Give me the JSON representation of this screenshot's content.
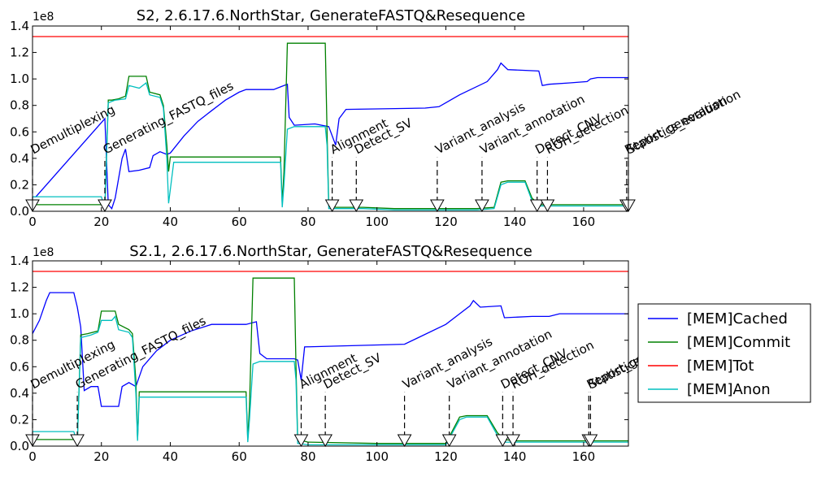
{
  "chart_data": [
    {
      "type": "line",
      "title": "S2, 2.6.17.6.NorthStar, GenerateFASTQ&Resequence",
      "offset_label": "1e8",
      "xlim": [
        0,
        173
      ],
      "ylim": [
        0,
        1.4
      ],
      "xticks": [
        0,
        20,
        40,
        60,
        80,
        100,
        120,
        140,
        160
      ],
      "yticks": [
        "0.0",
        "0.2",
        "0.4",
        "0.6",
        "0.8",
        "1.0",
        "1.2",
        "1.4"
      ],
      "series": [
        {
          "name": "[MEM]Cached",
          "color": "#0000ff",
          "points": [
            [
              0,
              0.11
            ],
            [
              1,
              0.11
            ],
            [
              21,
              0.7
            ],
            [
              22,
              0.05
            ],
            [
              23,
              0.02
            ],
            [
              24,
              0.1
            ],
            [
              26,
              0.4
            ],
            [
              27,
              0.47
            ],
            [
              28,
              0.3
            ],
            [
              31,
              0.31
            ],
            [
              34,
              0.33
            ],
            [
              35,
              0.42
            ],
            [
              37,
              0.45
            ],
            [
              39,
              0.43
            ],
            [
              40,
              0.44
            ],
            [
              44,
              0.57
            ],
            [
              48,
              0.68
            ],
            [
              52,
              0.76
            ],
            [
              56,
              0.84
            ],
            [
              60,
              0.9
            ],
            [
              62,
              0.92
            ],
            [
              70,
              0.92
            ],
            [
              72,
              0.94
            ],
            [
              74,
              0.96
            ],
            [
              74.5,
              0.71
            ],
            [
              76,
              0.65
            ],
            [
              82,
              0.66
            ],
            [
              86,
              0.64
            ],
            [
              88,
              0.5
            ],
            [
              89,
              0.7
            ],
            [
              91,
              0.77
            ],
            [
              114,
              0.78
            ],
            [
              118,
              0.79
            ],
            [
              124,
              0.88
            ],
            [
              132,
              0.98
            ],
            [
              135,
              1.07
            ],
            [
              136,
              1.12
            ],
            [
              138,
              1.07
            ],
            [
              147,
              1.06
            ],
            [
              148,
              0.95
            ],
            [
              150,
              0.96
            ],
            [
              156,
              0.97
            ],
            [
              161,
              0.98
            ],
            [
              162,
              1.0
            ],
            [
              164,
              1.01
            ],
            [
              173,
              1.01
            ]
          ]
        },
        {
          "name": "[MEM]Commit",
          "color": "#008000",
          "points": [
            [
              0,
              0.05
            ],
            [
              20,
              0.05
            ],
            [
              21,
              0.02
            ],
            [
              22,
              0.84
            ],
            [
              23,
              0.84
            ],
            [
              25,
              0.85
            ],
            [
              27,
              0.87
            ],
            [
              28,
              1.02
            ],
            [
              33,
              1.02
            ],
            [
              34,
              0.9
            ],
            [
              37,
              0.88
            ],
            [
              38,
              0.8
            ],
            [
              39,
              0.5
            ],
            [
              39.5,
              0.3
            ],
            [
              40,
              0.41
            ],
            [
              72,
              0.41
            ],
            [
              72.5,
              0.06
            ],
            [
              73,
              0.3
            ],
            [
              74,
              1.27
            ],
            [
              85,
              1.27
            ],
            [
              85.5,
              0.6
            ],
            [
              86,
              0.05
            ],
            [
              88,
              0.03
            ],
            [
              96,
              0.03
            ],
            [
              105,
              0.02
            ],
            [
              129,
              0.02
            ],
            [
              134,
              0.03
            ],
            [
              136,
              0.22
            ],
            [
              138,
              0.23
            ],
            [
              143,
              0.23
            ],
            [
              145,
              0.1
            ],
            [
              147,
              0.05
            ],
            [
              150,
              0.05
            ],
            [
              173,
              0.05
            ]
          ]
        },
        {
          "name": "[MEM]Tot",
          "color": "#ff0000",
          "points": [
            [
              0,
              1.32
            ],
            [
              173,
              1.32
            ]
          ]
        },
        {
          "name": "[MEM]Anon",
          "color": "#00bfbf",
          "points": [
            [
              0,
              0.11
            ],
            [
              20,
              0.11
            ],
            [
              21,
              0.02
            ],
            [
              22,
              0.82
            ],
            [
              24,
              0.84
            ],
            [
              27,
              0.85
            ],
            [
              28,
              0.95
            ],
            [
              31,
              0.93
            ],
            [
              33,
              0.97
            ],
            [
              34,
              0.88
            ],
            [
              37,
              0.86
            ],
            [
              38,
              0.78
            ],
            [
              39,
              0.4
            ],
            [
              39.5,
              0.06
            ],
            [
              41,
              0.37
            ],
            [
              72,
              0.37
            ],
            [
              72.5,
              0.03
            ],
            [
              73,
              0.2
            ],
            [
              74,
              0.62
            ],
            [
              76,
              0.64
            ],
            [
              85,
              0.64
            ],
            [
              85.5,
              0.5
            ],
            [
              86,
              0.02
            ],
            [
              88,
              0.02
            ],
            [
              96,
              0.02
            ],
            [
              105,
              0.01
            ],
            [
              129,
              0.01
            ],
            [
              134,
              0.02
            ],
            [
              136,
              0.2
            ],
            [
              138,
              0.22
            ],
            [
              143,
              0.22
            ],
            [
              145,
              0.08
            ],
            [
              147,
              0.04
            ],
            [
              150,
              0.04
            ],
            [
              173,
              0.04
            ]
          ]
        }
      ],
      "annotations": [
        {
          "label": "Demultiplexing",
          "x": 0,
          "ymark": 0.1
        },
        {
          "label": "Generating_FASTQ_files",
          "x": 21,
          "ymark": 0.1
        },
        {
          "label": "Alignment",
          "x": 87,
          "ymark": 0.1
        },
        {
          "label": "Detect_SV",
          "x": 94,
          "ymark": 0.1
        },
        {
          "label": "Variant_analysis",
          "x": 117.5,
          "ymark": 0.1
        },
        {
          "label": "Variant_annotation",
          "x": 130.5,
          "ymark": 0.1
        },
        {
          "label": "Detect_CNV",
          "x": 146.5,
          "ymark": 0.1
        },
        {
          "label": "ROH_detection",
          "x": 149.5,
          "ymark": 0.1
        },
        {
          "label": "Report_generation",
          "x": 172.5,
          "ymark": 0.1
        },
        {
          "label": "Statistics_evaluation",
          "x": 173,
          "ymark": 0.1
        }
      ]
    },
    {
      "type": "line",
      "title": "S2.1, 2.6.17.6.NorthStar, GenerateFASTQ&Resequence",
      "offset_label": "1e8",
      "xlim": [
        0,
        173
      ],
      "ylim": [
        0,
        1.4
      ],
      "xticks": [
        0,
        20,
        40,
        60,
        80,
        100,
        120,
        140,
        160
      ],
      "yticks": [
        "0.0",
        "0.2",
        "0.4",
        "0.6",
        "0.8",
        "1.0",
        "1.2",
        "1.4"
      ],
      "series": [
        {
          "name": "[MEM]Cached",
          "color": "#0000ff",
          "points": [
            [
              0,
              0.85
            ],
            [
              2,
              0.95
            ],
            [
              4,
              1.1
            ],
            [
              5,
              1.16
            ],
            [
              12,
              1.16
            ],
            [
              13,
              1.05
            ],
            [
              14,
              0.9
            ],
            [
              15,
              0.42
            ],
            [
              17,
              0.45
            ],
            [
              19,
              0.45
            ],
            [
              20,
              0.3
            ],
            [
              25,
              0.3
            ],
            [
              26,
              0.45
            ],
            [
              28,
              0.48
            ],
            [
              30,
              0.45
            ],
            [
              32,
              0.6
            ],
            [
              36,
              0.72
            ],
            [
              40,
              0.8
            ],
            [
              46,
              0.87
            ],
            [
              52,
              0.92
            ],
            [
              62,
              0.92
            ],
            [
              65,
              0.94
            ],
            [
              66,
              0.7
            ],
            [
              68,
              0.66
            ],
            [
              76,
              0.66
            ],
            [
              77,
              0.65
            ],
            [
              78,
              0.5
            ],
            [
              79,
              0.75
            ],
            [
              108,
              0.77
            ],
            [
              112,
              0.82
            ],
            [
              120,
              0.92
            ],
            [
              124,
              1.0
            ],
            [
              127,
              1.06
            ],
            [
              128,
              1.1
            ],
            [
              130,
              1.05
            ],
            [
              136,
              1.06
            ],
            [
              137,
              0.97
            ],
            [
              145,
              0.98
            ],
            [
              150,
              0.98
            ],
            [
              153,
              1.0
            ],
            [
              173,
              1.0
            ]
          ]
        },
        {
          "name": "[MEM]Commit",
          "color": "#008000",
          "points": [
            [
              0,
              0.05
            ],
            [
              12,
              0.05
            ],
            [
              13,
              0.02
            ],
            [
              14,
              0.84
            ],
            [
              16,
              0.85
            ],
            [
              19,
              0.87
            ],
            [
              20,
              1.02
            ],
            [
              24,
              1.02
            ],
            [
              25,
              0.92
            ],
            [
              28,
              0.88
            ],
            [
              29,
              0.85
            ],
            [
              30,
              0.5
            ],
            [
              30.5,
              0.05
            ],
            [
              31,
              0.41
            ],
            [
              62,
              0.41
            ],
            [
              62.5,
              0.05
            ],
            [
              63,
              0.3
            ],
            [
              64,
              1.27
            ],
            [
              76,
              1.27
            ],
            [
              76.5,
              0.6
            ],
            [
              77,
              0.05
            ],
            [
              80,
              0.03
            ],
            [
              100,
              0.02
            ],
            [
              120,
              0.02
            ],
            [
              124,
              0.22
            ],
            [
              126,
              0.23
            ],
            [
              132,
              0.23
            ],
            [
              135,
              0.1
            ],
            [
              137,
              0.05
            ],
            [
              140,
              0.04
            ],
            [
              173,
              0.04
            ]
          ]
        },
        {
          "name": "[MEM]Tot",
          "color": "#ff0000",
          "points": [
            [
              0,
              1.32
            ],
            [
              173,
              1.32
            ]
          ]
        },
        {
          "name": "[MEM]Anon",
          "color": "#00bfbf",
          "points": [
            [
              0,
              0.11
            ],
            [
              12,
              0.11
            ],
            [
              13,
              0.02
            ],
            [
              14,
              0.82
            ],
            [
              17,
              0.84
            ],
            [
              19,
              0.86
            ],
            [
              20,
              0.95
            ],
            [
              23,
              0.95
            ],
            [
              24,
              0.98
            ],
            [
              25,
              0.88
            ],
            [
              28,
              0.86
            ],
            [
              29,
              0.82
            ],
            [
              30,
              0.4
            ],
            [
              30.5,
              0.04
            ],
            [
              31,
              0.37
            ],
            [
              62,
              0.37
            ],
            [
              62.5,
              0.03
            ],
            [
              63,
              0.2
            ],
            [
              64,
              0.62
            ],
            [
              66,
              0.64
            ],
            [
              76,
              0.64
            ],
            [
              76.5,
              0.5
            ],
            [
              77,
              0.02
            ],
            [
              80,
              0.01
            ],
            [
              100,
              0.01
            ],
            [
              120,
              0.01
            ],
            [
              124,
              0.2
            ],
            [
              126,
              0.22
            ],
            [
              132,
              0.22
            ],
            [
              135,
              0.08
            ],
            [
              137,
              0.03
            ],
            [
              140,
              0.03
            ],
            [
              173,
              0.03
            ]
          ]
        }
      ],
      "annotations": [
        {
          "label": "Demultiplexing",
          "x": 0,
          "ymark": 0.1
        },
        {
          "label": "Generating_FASTQ_files",
          "x": 13,
          "ymark": 0.1
        },
        {
          "label": "Alignment",
          "x": 78,
          "ymark": 0.1
        },
        {
          "label": "Detect_SV",
          "x": 85,
          "ymark": 0.1
        },
        {
          "label": "Variant_analysis",
          "x": 108,
          "ymark": 0.1
        },
        {
          "label": "Variant_annotation",
          "x": 121,
          "ymark": 0.1
        },
        {
          "label": "Detect_CNV",
          "x": 136.5,
          "ymark": 0.1
        },
        {
          "label": "ROH_detection",
          "x": 139.5,
          "ymark": 0.1
        },
        {
          "label": "Report_generation",
          "x": 161.5,
          "ymark": 0.1
        },
        {
          "label": "Statistics_evaluation",
          "x": 162,
          "ymark": 0.1
        }
      ]
    }
  ],
  "legend": {
    "placement": "right-of-bottom-panel",
    "items": [
      {
        "name": "[MEM]Cached",
        "color": "#0000ff"
      },
      {
        "name": "[MEM]Commit",
        "color": "#008000"
      },
      {
        "name": "[MEM]Tot",
        "color": "#ff0000"
      },
      {
        "name": "[MEM]Anon",
        "color": "#00bfbf"
      }
    ]
  }
}
